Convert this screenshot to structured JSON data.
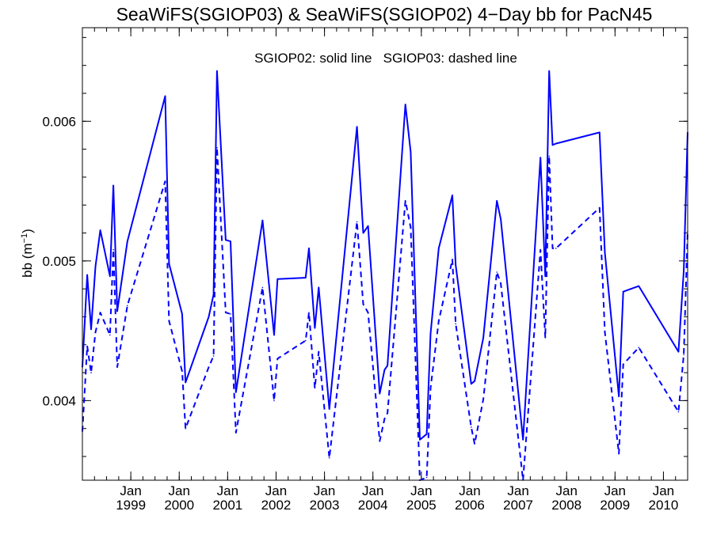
{
  "chart_data": {
    "type": "line",
    "title": "SeaWiFS(SGIOP03) & SeaWiFS(SGIOP02) 4−Day bb for PacN45",
    "annotation": "SGIOP02: solid line   SGIOP03: dashed line",
    "ylabel_main": "bb (m",
    "ylabel_sup": "−1",
    "ylabel_close": ")",
    "ylim": [
      0.00343,
      0.00667
    ],
    "xlim": [
      1998.0,
      2010.5
    ],
    "grid": false,
    "y_ticks": [
      {
        "value": 0.004,
        "label": "0.004"
      },
      {
        "value": 0.005,
        "label": "0.005"
      },
      {
        "value": 0.006,
        "label": "0.006"
      }
    ],
    "y_minor_step": 0.0002,
    "x_ticks": [
      {
        "value": 1999.0,
        "month": "Jan",
        "year": "1999"
      },
      {
        "value": 2000.0,
        "month": "Jan",
        "year": "2000"
      },
      {
        "value": 2001.0,
        "month": "Jan",
        "year": "2001"
      },
      {
        "value": 2002.0,
        "month": "Jan",
        "year": "2002"
      },
      {
        "value": 2003.0,
        "month": "Jan",
        "year": "2003"
      },
      {
        "value": 2004.0,
        "month": "Jan",
        "year": "2004"
      },
      {
        "value": 2005.0,
        "month": "Jan",
        "year": "2005"
      },
      {
        "value": 2006.0,
        "month": "Jan",
        "year": "2006"
      },
      {
        "value": 2007.0,
        "month": "Jan",
        "year": "2007"
      },
      {
        "value": 2008.0,
        "month": "Jan",
        "year": "2008"
      },
      {
        "value": 2009.0,
        "month": "Jan",
        "year": "2009"
      },
      {
        "value": 2010.0,
        "month": "Jan",
        "year": "2010"
      }
    ],
    "x_minor_step": 0.25,
    "series": [
      {
        "style": "solid",
        "color": "#0000ff",
        "x": [
          1998.0,
          1998.1,
          1998.18,
          1998.27,
          1998.37,
          1998.57,
          1998.64,
          1998.72,
          1998.93,
          1999.71,
          1999.79,
          2000.06,
          2000.13,
          2000.61,
          2000.71,
          2000.78,
          2000.96,
          2001.06,
          2001.17,
          2001.72,
          2001.96,
          2002.03,
          2002.61,
          2002.68,
          2002.8,
          2002.88,
          2003.1,
          2003.67,
          2003.8,
          2003.9,
          2004.14,
          2004.24,
          2004.3,
          2004.67,
          2004.78,
          2004.97,
          2005.11,
          2005.19,
          2005.36,
          2005.64,
          2005.71,
          2006.03,
          2006.1,
          2006.28,
          2006.56,
          2006.64,
          2007.1,
          2007.46,
          2007.56,
          2007.64,
          2007.71,
          2007.78,
          2008.68,
          2008.79,
          2009.08,
          2009.17,
          2009.49,
          2010.31,
          2010.42,
          2010.5
        ],
        "y": [
          0.00424,
          0.0049,
          0.00451,
          0.00496,
          0.00522,
          0.00489,
          0.00554,
          0.00464,
          0.00514,
          0.00618,
          0.00498,
          0.00462,
          0.00413,
          0.0046,
          0.00476,
          0.00636,
          0.00515,
          0.00514,
          0.00406,
          0.00529,
          0.00447,
          0.00487,
          0.00488,
          0.00509,
          0.00452,
          0.00481,
          0.00394,
          0.00596,
          0.0052,
          0.00525,
          0.00405,
          0.00422,
          0.00425,
          0.00612,
          0.00578,
          0.00372,
          0.00376,
          0.00448,
          0.00509,
          0.00547,
          0.00497,
          0.00412,
          0.00414,
          0.00445,
          0.00543,
          0.0053,
          0.00372,
          0.00574,
          0.00489,
          0.00636,
          0.00583,
          0.00584,
          0.00592,
          0.00506,
          0.00403,
          0.00478,
          0.00482,
          0.00435,
          0.00493,
          0.00592
        ]
      },
      {
        "style": "dashed",
        "color": "#0000ff",
        "x": [
          1998.0,
          1998.1,
          1998.18,
          1998.27,
          1998.37,
          1998.57,
          1998.64,
          1998.72,
          1998.93,
          1999.71,
          1999.79,
          2000.06,
          2000.13,
          2000.61,
          2000.71,
          2000.78,
          2000.96,
          2001.06,
          2001.17,
          2001.72,
          2001.96,
          2002.03,
          2002.61,
          2002.68,
          2002.8,
          2002.88,
          2003.1,
          2003.67,
          2003.8,
          2003.9,
          2004.14,
          2004.24,
          2004.3,
          2004.67,
          2004.78,
          2004.97,
          2005.11,
          2005.19,
          2005.36,
          2005.64,
          2005.71,
          2006.03,
          2006.1,
          2006.28,
          2006.56,
          2006.64,
          2007.1,
          2007.46,
          2007.56,
          2007.64,
          2007.71,
          2007.78,
          2008.68,
          2008.79,
          2009.08,
          2009.17,
          2009.49,
          2010.31,
          2010.42,
          2010.5
        ],
        "y": [
          0.00378,
          0.00439,
          0.0042,
          0.00449,
          0.00463,
          0.00447,
          0.00508,
          0.00424,
          0.00468,
          0.00557,
          0.00457,
          0.00421,
          0.0038,
          0.00424,
          0.00432,
          0.00581,
          0.00463,
          0.00462,
          0.00377,
          0.00481,
          0.004,
          0.0043,
          0.00443,
          0.00463,
          0.00409,
          0.00435,
          0.00359,
          0.00528,
          0.00469,
          0.00463,
          0.00371,
          0.00387,
          0.00391,
          0.00543,
          0.00524,
          0.00343,
          0.00345,
          0.00409,
          0.00457,
          0.00501,
          0.00455,
          0.00381,
          0.00369,
          0.00401,
          0.00492,
          0.00484,
          0.00343,
          0.00508,
          0.00445,
          0.00575,
          0.00509,
          0.00509,
          0.00538,
          0.00449,
          0.00362,
          0.00426,
          0.00438,
          0.00392,
          0.00433,
          0.00521
        ]
      }
    ]
  }
}
